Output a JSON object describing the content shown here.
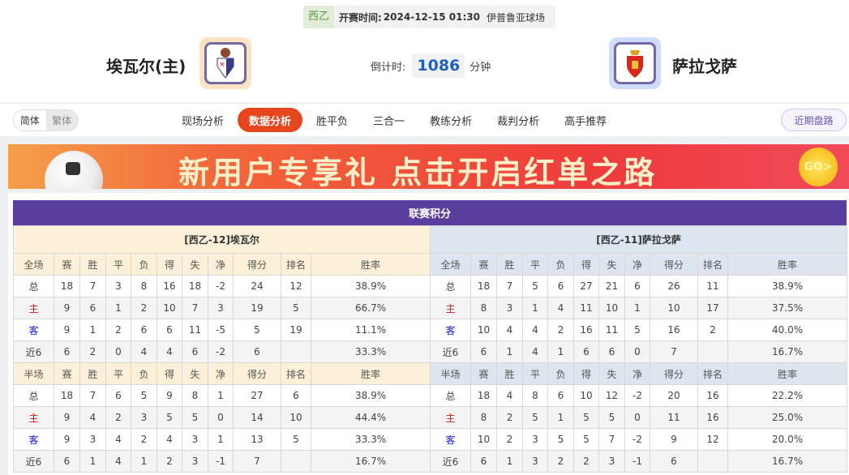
{
  "match": {
    "league": "西乙",
    "kickoff_label": "开赛时间:",
    "kickoff": "2024-12-15 01:30",
    "venue": "伊普鲁亚球场",
    "home_team": "埃瓦尔(主)",
    "away_team": "萨拉戈萨",
    "countdown_label": "倒计时:",
    "countdown_value": "1086",
    "countdown_unit": "分钟"
  },
  "lang": {
    "simplified": "简体",
    "traditional": "繁体"
  },
  "nav": {
    "items": [
      "现场分析",
      "数据分析",
      "胜平负",
      "三合一",
      "教练分析",
      "裁判分析",
      "高手推荐"
    ],
    "active": 1,
    "recent": "近期盘路"
  },
  "banner": {
    "text": "新用户专享礼 点击开启红单之路",
    "go": "GO>"
  },
  "standings": {
    "title": "联赛积分",
    "columns": [
      "赛",
      "胜",
      "平",
      "负",
      "得",
      "失",
      "净",
      "得分",
      "排名",
      "胜率"
    ],
    "teams": [
      {
        "title": "[西乙-12]埃瓦尔",
        "sections": [
          {
            "label": "全场",
            "rows": [
              [
                "总",
                "18",
                "7",
                "3",
                "8",
                "16",
                "18",
                "-2",
                "24",
                "12",
                "38.9%"
              ],
              [
                "主",
                "9",
                "6",
                "1",
                "2",
                "10",
                "7",
                "3",
                "19",
                "5",
                "66.7%"
              ],
              [
                "客",
                "9",
                "1",
                "2",
                "6",
                "6",
                "11",
                "-5",
                "5",
                "19",
                "11.1%"
              ],
              [
                "近6",
                "6",
                "2",
                "0",
                "4",
                "4",
                "6",
                "-2",
                "6",
                "",
                "33.3%"
              ]
            ]
          },
          {
            "label": "半场",
            "rows": [
              [
                "总",
                "18",
                "7",
                "6",
                "5",
                "9",
                "8",
                "1",
                "27",
                "6",
                "38.9%"
              ],
              [
                "主",
                "9",
                "4",
                "2",
                "3",
                "5",
                "5",
                "0",
                "14",
                "10",
                "44.4%"
              ],
              [
                "客",
                "9",
                "3",
                "4",
                "2",
                "4",
                "3",
                "1",
                "13",
                "5",
                "33.3%"
              ],
              [
                "近6",
                "6",
                "1",
                "4",
                "1",
                "2",
                "3",
                "-1",
                "7",
                "",
                "16.7%"
              ]
            ]
          }
        ]
      },
      {
        "title": "[西乙-11]萨拉戈萨",
        "sections": [
          {
            "label": "全场",
            "rows": [
              [
                "总",
                "18",
                "7",
                "5",
                "6",
                "27",
                "21",
                "6",
                "26",
                "11",
                "38.9%"
              ],
              [
                "主",
                "8",
                "3",
                "1",
                "4",
                "11",
                "10",
                "1",
                "10",
                "17",
                "37.5%"
              ],
              [
                "客",
                "10",
                "4",
                "4",
                "2",
                "16",
                "11",
                "5",
                "16",
                "2",
                "40.0%"
              ],
              [
                "近6",
                "6",
                "1",
                "4",
                "1",
                "6",
                "6",
                "0",
                "7",
                "",
                "16.7%"
              ]
            ]
          },
          {
            "label": "半场",
            "rows": [
              [
                "总",
                "18",
                "4",
                "8",
                "6",
                "10",
                "12",
                "-2",
                "20",
                "16",
                "22.2%"
              ],
              [
                "主",
                "8",
                "2",
                "5",
                "1",
                "5",
                "5",
                "0",
                "11",
                "16",
                "25.0%"
              ],
              [
                "客",
                "10",
                "2",
                "3",
                "5",
                "5",
                "7",
                "-2",
                "9",
                "12",
                "20.0%"
              ],
              [
                "近6",
                "6",
                "1",
                "3",
                "2",
                "2",
                "3",
                "-1",
                "6",
                "",
                "16.7%"
              ]
            ]
          }
        ]
      }
    ]
  },
  "colors": {
    "accent": "#e6461e",
    "title_bar": "#5a3e9e",
    "home_row": "#e01010",
    "away_row": "#1a23d8"
  }
}
